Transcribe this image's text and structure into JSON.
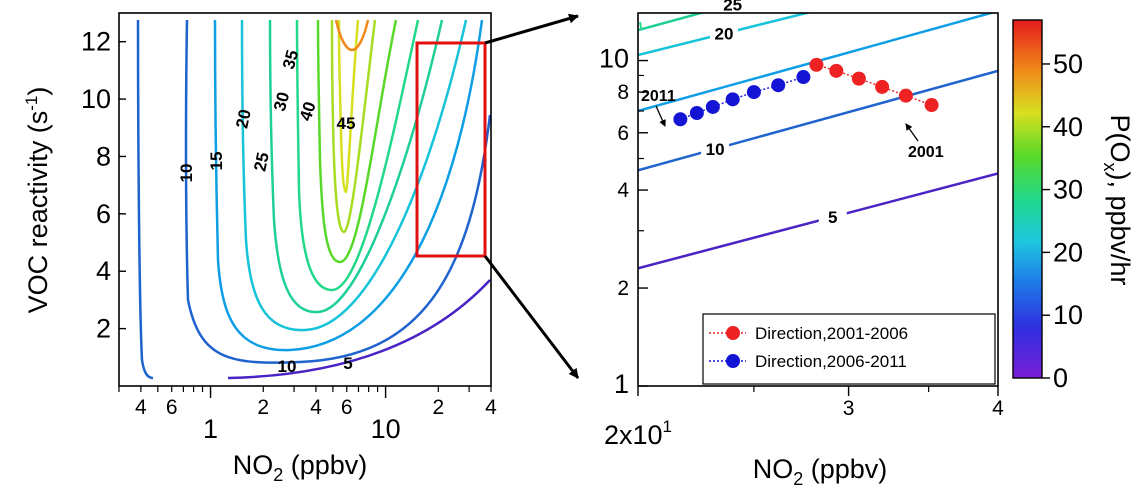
{
  "chart_data": [
    {
      "type": "contour",
      "panel": "left",
      "xlabel": {
        "base": "NO",
        "sub": "2",
        "rest": " (ppbv)"
      },
      "ylabel": "VOC reactivity (s-1)",
      "ylabel_parts": {
        "main": "VOC reactivity (s",
        "sup": "-1",
        "close": ")"
      },
      "xscale": "log",
      "xlim": [
        0.3,
        40
      ],
      "ylim": [
        0,
        13
      ],
      "xticks_major": [
        {
          "value": 1,
          "label": "1"
        },
        {
          "value": 10,
          "label": "10"
        }
      ],
      "xticks_minor": [
        {
          "value": 0.4,
          "label": "4"
        },
        {
          "value": 0.6,
          "label": "6"
        },
        {
          "value": 2,
          "label": "2"
        },
        {
          "value": 4,
          "label": "4"
        },
        {
          "value": 6,
          "label": "6"
        },
        {
          "value": 20,
          "label": "2"
        },
        {
          "value": 40,
          "label": "4"
        }
      ],
      "yticks": [
        {
          "value": 2,
          "label": "2"
        },
        {
          "value": 4,
          "label": "4"
        },
        {
          "value": 6,
          "label": "6"
        },
        {
          "value": 8,
          "label": "8"
        },
        {
          "value": 10,
          "label": "10"
        },
        {
          "value": 12,
          "label": "12"
        }
      ],
      "contour_labels": [
        "5",
        "10",
        "10",
        "15",
        "20",
        "25",
        "30",
        "35",
        "40",
        "45"
      ],
      "zoom_box": {
        "x": [
          15,
          38
        ],
        "y": [
          4.5,
          12.2
        ],
        "color": "#e01010"
      }
    },
    {
      "type": "contour",
      "panel": "right",
      "xlabel": {
        "base": "NO",
        "sub": "2",
        "rest": " (ppbv)"
      },
      "xscale": "log",
      "yscale": "log",
      "xlim": [
        20,
        40
      ],
      "ylim": [
        1,
        14
      ],
      "xticks": [
        {
          "value": 20,
          "label": "2x10",
          "sup": "1"
        },
        {
          "value": 30,
          "label": "3"
        },
        {
          "value": 40,
          "label": "4"
        }
      ],
      "yticks": [
        {
          "value": 1,
          "label": "1"
        },
        {
          "value": 2,
          "label": "2"
        },
        {
          "value": 4,
          "label": "4"
        },
        {
          "value": 6,
          "label": "6"
        },
        {
          "value": 8,
          "label": "8"
        },
        {
          "value": 10,
          "label": "10"
        }
      ],
      "contours": [
        {
          "level": 5,
          "label": "5",
          "color": "#4a23c4",
          "x": [
            20,
            40
          ],
          "y": [
            2.3,
            4.5
          ]
        },
        {
          "level": 10,
          "label": "10",
          "color": "#1f63cf",
          "x": [
            20,
            40
          ],
          "y": [
            4.6,
            9.3
          ]
        },
        {
          "level": 15,
          "color": "#0e9ee6",
          "x": [
            20,
            40
          ],
          "y": [
            7.0,
            14.2
          ]
        },
        {
          "level": 20,
          "label": "20",
          "color": "#16c3d8",
          "x": [
            20,
            32
          ],
          "y": [
            10.4,
            16
          ]
        },
        {
          "level": 25,
          "label": "25",
          "color": "#1fcf9a",
          "x": [
            20,
            25.8
          ],
          "y": [
            12.4,
            16
          ]
        }
      ],
      "series": [
        {
          "name": "Direction,2001-2006",
          "color": "#ee2222",
          "x": [
            35.2,
            33.5,
            32.0,
            30.6,
            29.3,
            28.2
          ],
          "y": [
            7.3,
            7.8,
            8.3,
            8.8,
            9.3,
            9.7
          ]
        },
        {
          "name": "Direction,2006-2011",
          "color": "#1414d4",
          "x": [
            27.5,
            26.2,
            25.0,
            24.0,
            23.1,
            22.4,
            21.7
          ],
          "y": [
            8.9,
            8.4,
            8.0,
            7.6,
            7.2,
            6.9,
            6.6
          ]
        }
      ],
      "annotations": [
        {
          "text": "2011",
          "target_x": 21.7,
          "target_y": 6.6
        },
        {
          "text": "2001",
          "target_x": 35.2,
          "target_y": 7.3
        }
      ],
      "colorbar": {
        "label": "P(Ox), ppbv/hr",
        "label_parts": {
          "pre": "P(O",
          "sub": "x",
          "post": "), ppbv/hr"
        },
        "range": [
          0,
          57
        ],
        "ticks": [
          {
            "value": 0,
            "label": "0"
          },
          {
            "value": 10,
            "label": "10"
          },
          {
            "value": 20,
            "label": "20"
          },
          {
            "value": 30,
            "label": "30"
          },
          {
            "value": 40,
            "label": "40"
          },
          {
            "value": 50,
            "label": "50"
          }
        ],
        "colormap": [
          "#7a1fd6",
          "#2f2fe0",
          "#1e7ce8",
          "#1fc6e0",
          "#22d98a",
          "#58d92a",
          "#d7e020",
          "#f08a1a",
          "#e41b1b"
        ]
      },
      "legend_position": "bottom-right"
    }
  ]
}
